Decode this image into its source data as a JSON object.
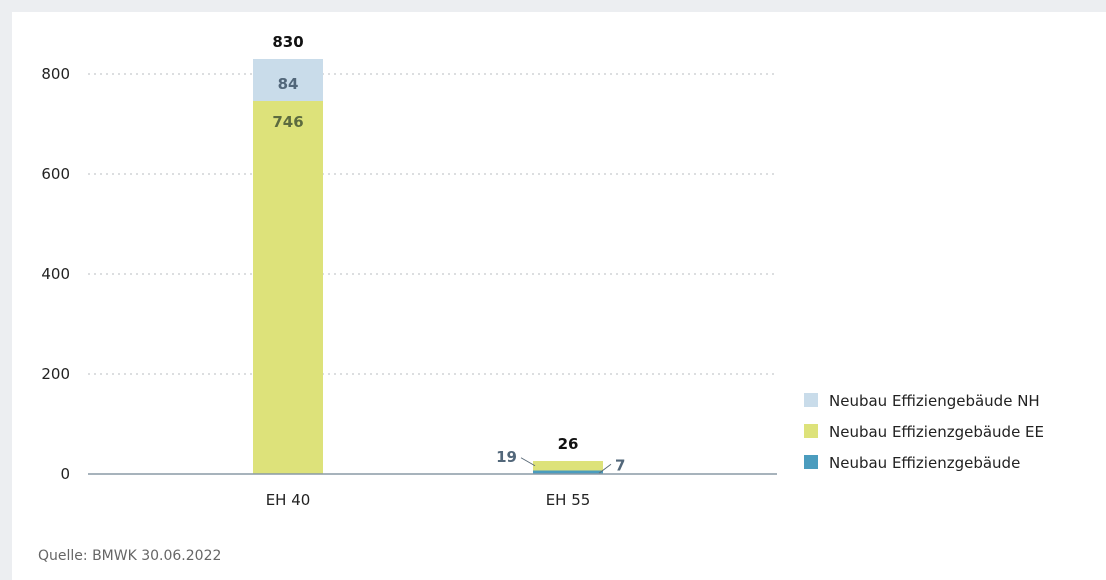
{
  "chart_data": {
    "type": "bar",
    "stacked": true,
    "categories": [
      "EH 40",
      "EH 55"
    ],
    "ylim": [
      0,
      830
    ],
    "yticks": [
      0,
      200,
      400,
      600,
      800
    ],
    "grid": true,
    "legend_position": "bottom-right",
    "series": [
      {
        "name": "Neubau Effizienzgebäude",
        "values": [
          0,
          7
        ],
        "color": "#4b9cbe"
      },
      {
        "name": "Neubau Effizienzgebäude EE",
        "values": [
          746,
          19
        ],
        "color": "#dde27a"
      },
      {
        "name": "Neubau Effiziengebäude NH",
        "values": [
          84,
          0
        ],
        "color": "#c9dcea"
      }
    ],
    "totals": [
      830,
      26
    ],
    "segment_labels": [
      [
        {
          "text": "746",
          "series": 1
        },
        {
          "text": "84",
          "series": 2
        }
      ],
      [
        {
          "text": "19",
          "series": 1,
          "callout": "left"
        },
        {
          "text": "7",
          "series": 0,
          "callout": "right"
        }
      ]
    ],
    "legend_order": [
      2,
      1,
      0
    ]
  },
  "source": "Quelle: BMWK 30.06.2022"
}
